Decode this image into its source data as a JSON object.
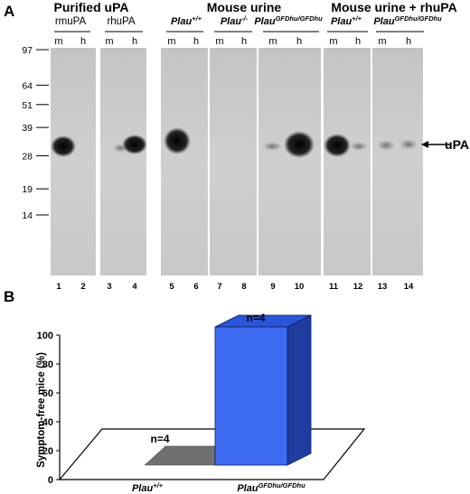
{
  "panel_a": {
    "label": "A",
    "mw_markers": [
      "97",
      "64",
      "51",
      "39",
      "28",
      "19",
      "14"
    ],
    "mw_values": [
      97,
      64,
      51,
      39,
      28,
      19,
      14
    ],
    "group_titles": [
      "Purified uPA",
      "Mouse urine",
      "Mouse urine + rhuPA"
    ],
    "blot_labels": {
      "rmupa": "rmuPA",
      "rhupa": "rhuPA",
      "plau_wt_base": "Plau",
      "plau_wt_sup": "+/+",
      "plau_ko_base": "Plau",
      "plau_ko_sup": "-/-",
      "plau_gfd_base": "Plau",
      "plau_gfd_sup": "GFDhu/GFDhu",
      "plau_wt2_base": "Plau",
      "plau_wt2_sup": "+/+",
      "plau_gfd2_base": "Plau",
      "plau_gfd2_sup": "GFDhu/GFDhu"
    },
    "mh": [
      "m",
      "h"
    ],
    "lanes": [
      "1",
      "2",
      "3",
      "4",
      "5",
      "6",
      "7",
      "8",
      "9",
      "10",
      "11",
      "12",
      "13",
      "14"
    ],
    "band_label": "uPA"
  },
  "panel_b": {
    "label": "B",
    "chart_data": {
      "type": "bar",
      "ylabel": "Symptom-free mice (%)",
      "ylim": [
        0,
        100
      ],
      "yticks": [
        "0",
        "20",
        "40",
        "60",
        "80",
        "100"
      ],
      "categories": [
        "Plau+/+",
        "PlauGFDhu/GFDhu"
      ],
      "values": [
        0,
        100
      ],
      "annotations": [
        "n=4",
        "n=4"
      ],
      "colors": {
        "front": "#3d6cf0",
        "side": "#1f3d9e",
        "top": "#2a55d8",
        "zero": "#707070"
      }
    },
    "cat_labels": {
      "wt_base": "Plau",
      "wt_sup": "+/+",
      "gfd_base": "Plau",
      "gfd_sup": "GFDhu/GFDhu"
    }
  }
}
